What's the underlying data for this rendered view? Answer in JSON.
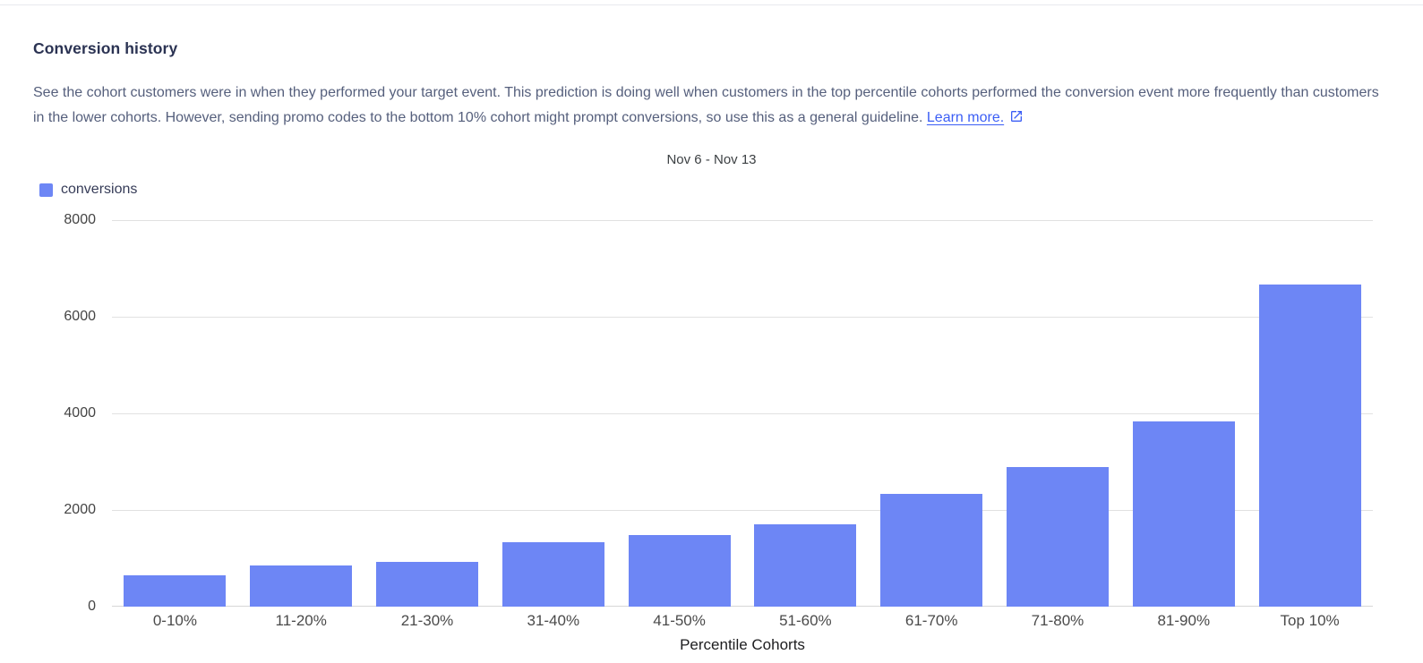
{
  "header": {
    "title": "Conversion history",
    "description": "See the cohort customers were in when they performed your target event. This prediction is doing well when customers in the top percentile cohorts performed the conversion event more frequently than customers in the lower cohorts. However, sending promo codes to the bottom 10% cohort might prompt conversions, so use this as a general guideline.",
    "link_label": "Learn more."
  },
  "colors": {
    "bar": "#6d86f5",
    "link": "#3b5ef5",
    "heading": "#2b3353",
    "body_text": "#555f7c",
    "gridline": "#e1e1e1",
    "axis_label": "#444444"
  },
  "chart_data": {
    "type": "bar",
    "title": "Nov 6 - Nov 13",
    "series_name": "conversions",
    "legend": [
      {
        "label": "conversions",
        "color": "#6d86f5"
      }
    ],
    "legend_position": "top-left",
    "categories": [
      "0-10%",
      "11-20%",
      "21-30%",
      "31-40%",
      "41-50%",
      "51-60%",
      "61-70%",
      "71-80%",
      "81-90%",
      "Top 10%"
    ],
    "values": [
      650,
      850,
      930,
      1330,
      1480,
      1700,
      2330,
      2890,
      3830,
      6670
    ],
    "xlabel": "Percentile Cohorts",
    "ylabel": "",
    "ylim": [
      0,
      8000
    ],
    "yticks": [
      0,
      2000,
      4000,
      6000,
      8000
    ],
    "grid": true
  }
}
